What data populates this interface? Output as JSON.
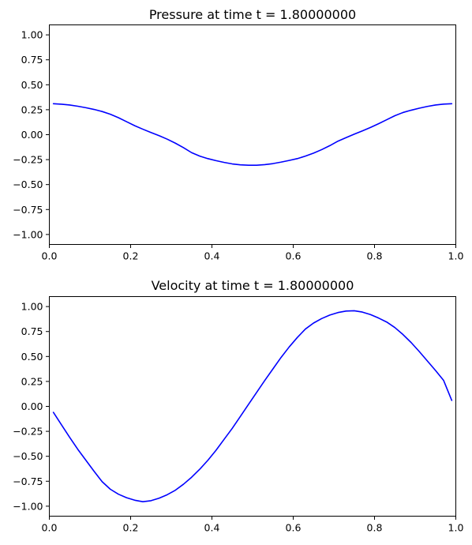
{
  "chart_data": [
    {
      "type": "line",
      "title": "Pressure at time t =     1.80000000",
      "xlabel": "",
      "ylabel": "",
      "xlim": [
        0.0,
        1.0
      ],
      "ylim": [
        -1.1,
        1.1
      ],
      "xticks": [
        0.0,
        0.2,
        0.4,
        0.6,
        0.8,
        1.0
      ],
      "xtick_labels": [
        "0.0",
        "0.2",
        "0.4",
        "0.6",
        "0.8",
        "1.0"
      ],
      "yticks": [
        1.0,
        0.75,
        0.5,
        0.25,
        0.0,
        -0.25,
        -0.5,
        -0.75,
        -1.0
      ],
      "ytick_labels": [
        "1.00",
        "0.75",
        "0.50",
        "0.25",
        "0.00",
        "−0.25",
        "−0.50",
        "−0.75",
        "−1.00"
      ],
      "grid": false,
      "color": "#0000ff",
      "series": [
        {
          "x": [
            0.01,
            0.03,
            0.05,
            0.07,
            0.09,
            0.11,
            0.13,
            0.15,
            0.17,
            0.19,
            0.21,
            0.23,
            0.25,
            0.27,
            0.29,
            0.31,
            0.33,
            0.35,
            0.37,
            0.39,
            0.41,
            0.43,
            0.45,
            0.47,
            0.49,
            0.51,
            0.53,
            0.55,
            0.57,
            0.59,
            0.61,
            0.63,
            0.65,
            0.67,
            0.69,
            0.71,
            0.73,
            0.75,
            0.77,
            0.79,
            0.81,
            0.83,
            0.85,
            0.87,
            0.89,
            0.91,
            0.93,
            0.95,
            0.97,
            0.99
          ],
          "values": [
            0.31,
            0.305,
            0.297,
            0.285,
            0.27,
            0.253,
            0.232,
            0.205,
            0.17,
            0.13,
            0.09,
            0.055,
            0.022,
            -0.01,
            -0.045,
            -0.085,
            -0.13,
            -0.18,
            -0.215,
            -0.24,
            -0.26,
            -0.278,
            -0.293,
            -0.302,
            -0.306,
            -0.306,
            -0.3,
            -0.29,
            -0.275,
            -0.258,
            -0.24,
            -0.215,
            -0.185,
            -0.15,
            -0.11,
            -0.065,
            -0.03,
            0.005,
            0.038,
            0.072,
            0.11,
            0.15,
            0.19,
            0.222,
            0.245,
            0.265,
            0.283,
            0.297,
            0.306,
            0.31
          ]
        }
      ]
    },
    {
      "type": "line",
      "title": "Velocity at time t =     1.80000000",
      "xlabel": "",
      "ylabel": "",
      "xlim": [
        0.0,
        1.0
      ],
      "ylim": [
        -1.1,
        1.1
      ],
      "xticks": [
        0.0,
        0.2,
        0.4,
        0.6,
        0.8,
        1.0
      ],
      "xtick_labels": [
        "0.0",
        "0.2",
        "0.4",
        "0.6",
        "0.8",
        "1.0"
      ],
      "yticks": [
        1.0,
        0.75,
        0.5,
        0.25,
        0.0,
        -0.25,
        -0.5,
        -0.75,
        -1.0
      ],
      "ytick_labels": [
        "1.00",
        "0.75",
        "0.50",
        "0.25",
        "0.00",
        "−0.25",
        "−0.50",
        "−0.75",
        "−1.00"
      ],
      "grid": false,
      "color": "#0000ff",
      "series": [
        {
          "x": [
            0.01,
            0.03,
            0.05,
            0.07,
            0.09,
            0.11,
            0.13,
            0.15,
            0.17,
            0.19,
            0.21,
            0.23,
            0.25,
            0.27,
            0.29,
            0.31,
            0.33,
            0.35,
            0.37,
            0.39,
            0.41,
            0.43,
            0.45,
            0.47,
            0.49,
            0.51,
            0.53,
            0.55,
            0.57,
            0.59,
            0.61,
            0.63,
            0.65,
            0.67,
            0.69,
            0.71,
            0.73,
            0.75,
            0.77,
            0.79,
            0.81,
            0.83,
            0.85,
            0.87,
            0.89,
            0.91,
            0.93,
            0.95,
            0.97,
            0.99
          ],
          "values": [
            -0.06,
            -0.185,
            -0.31,
            -0.43,
            -0.54,
            -0.65,
            -0.755,
            -0.83,
            -0.88,
            -0.915,
            -0.94,
            -0.955,
            -0.945,
            -0.92,
            -0.885,
            -0.84,
            -0.78,
            -0.71,
            -0.63,
            -0.54,
            -0.44,
            -0.33,
            -0.22,
            -0.1,
            0.02,
            0.14,
            0.26,
            0.375,
            0.49,
            0.595,
            0.69,
            0.775,
            0.835,
            0.88,
            0.915,
            0.94,
            0.955,
            0.958,
            0.945,
            0.92,
            0.885,
            0.845,
            0.79,
            0.72,
            0.64,
            0.55,
            0.455,
            0.36,
            0.26,
            0.06
          ]
        }
      ]
    }
  ]
}
